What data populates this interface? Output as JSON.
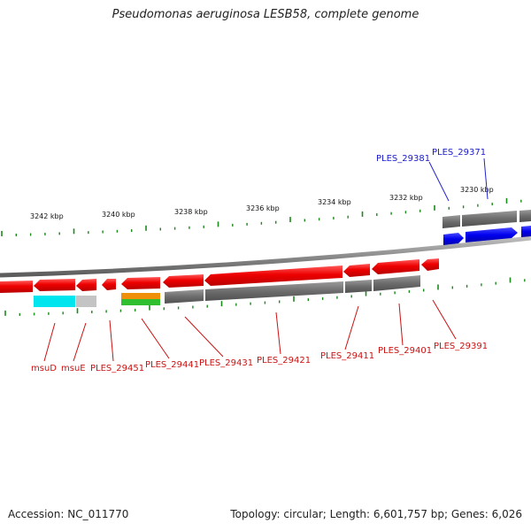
{
  "title": "Pseudomonas aeruginosa LESB58, complete genome",
  "footer": {
    "accession": "Accession: NC_011770",
    "summary": "Topology: circular; Length: 6,601,757 bp; Genes: 6,026"
  },
  "ruler": {
    "labels": [
      "3242 kbp",
      "3240 kbp",
      "3238 kbp",
      "3236 kbp",
      "3234 kbp",
      "3232 kbp",
      "3230 kbp"
    ]
  },
  "genes_top": [
    "PLES_29381",
    "PLES_29371"
  ],
  "genes_bottom": [
    "msuD",
    "msuE",
    "PLES_29451",
    "PLES_29441",
    "PLES_29431",
    "PLES_29421",
    "PLES_29411",
    "PLES_29401",
    "PLES_29391"
  ],
  "colors": {
    "forward_strand": "#1010ee",
    "reverse_strand": "#ee1111",
    "feature_gray": "#707070",
    "tick_green": "#1a8a1a",
    "cyan_feature": "#00e5ee",
    "orange_feature": "#f0900a",
    "green_feature": "#2fbf2f"
  }
}
